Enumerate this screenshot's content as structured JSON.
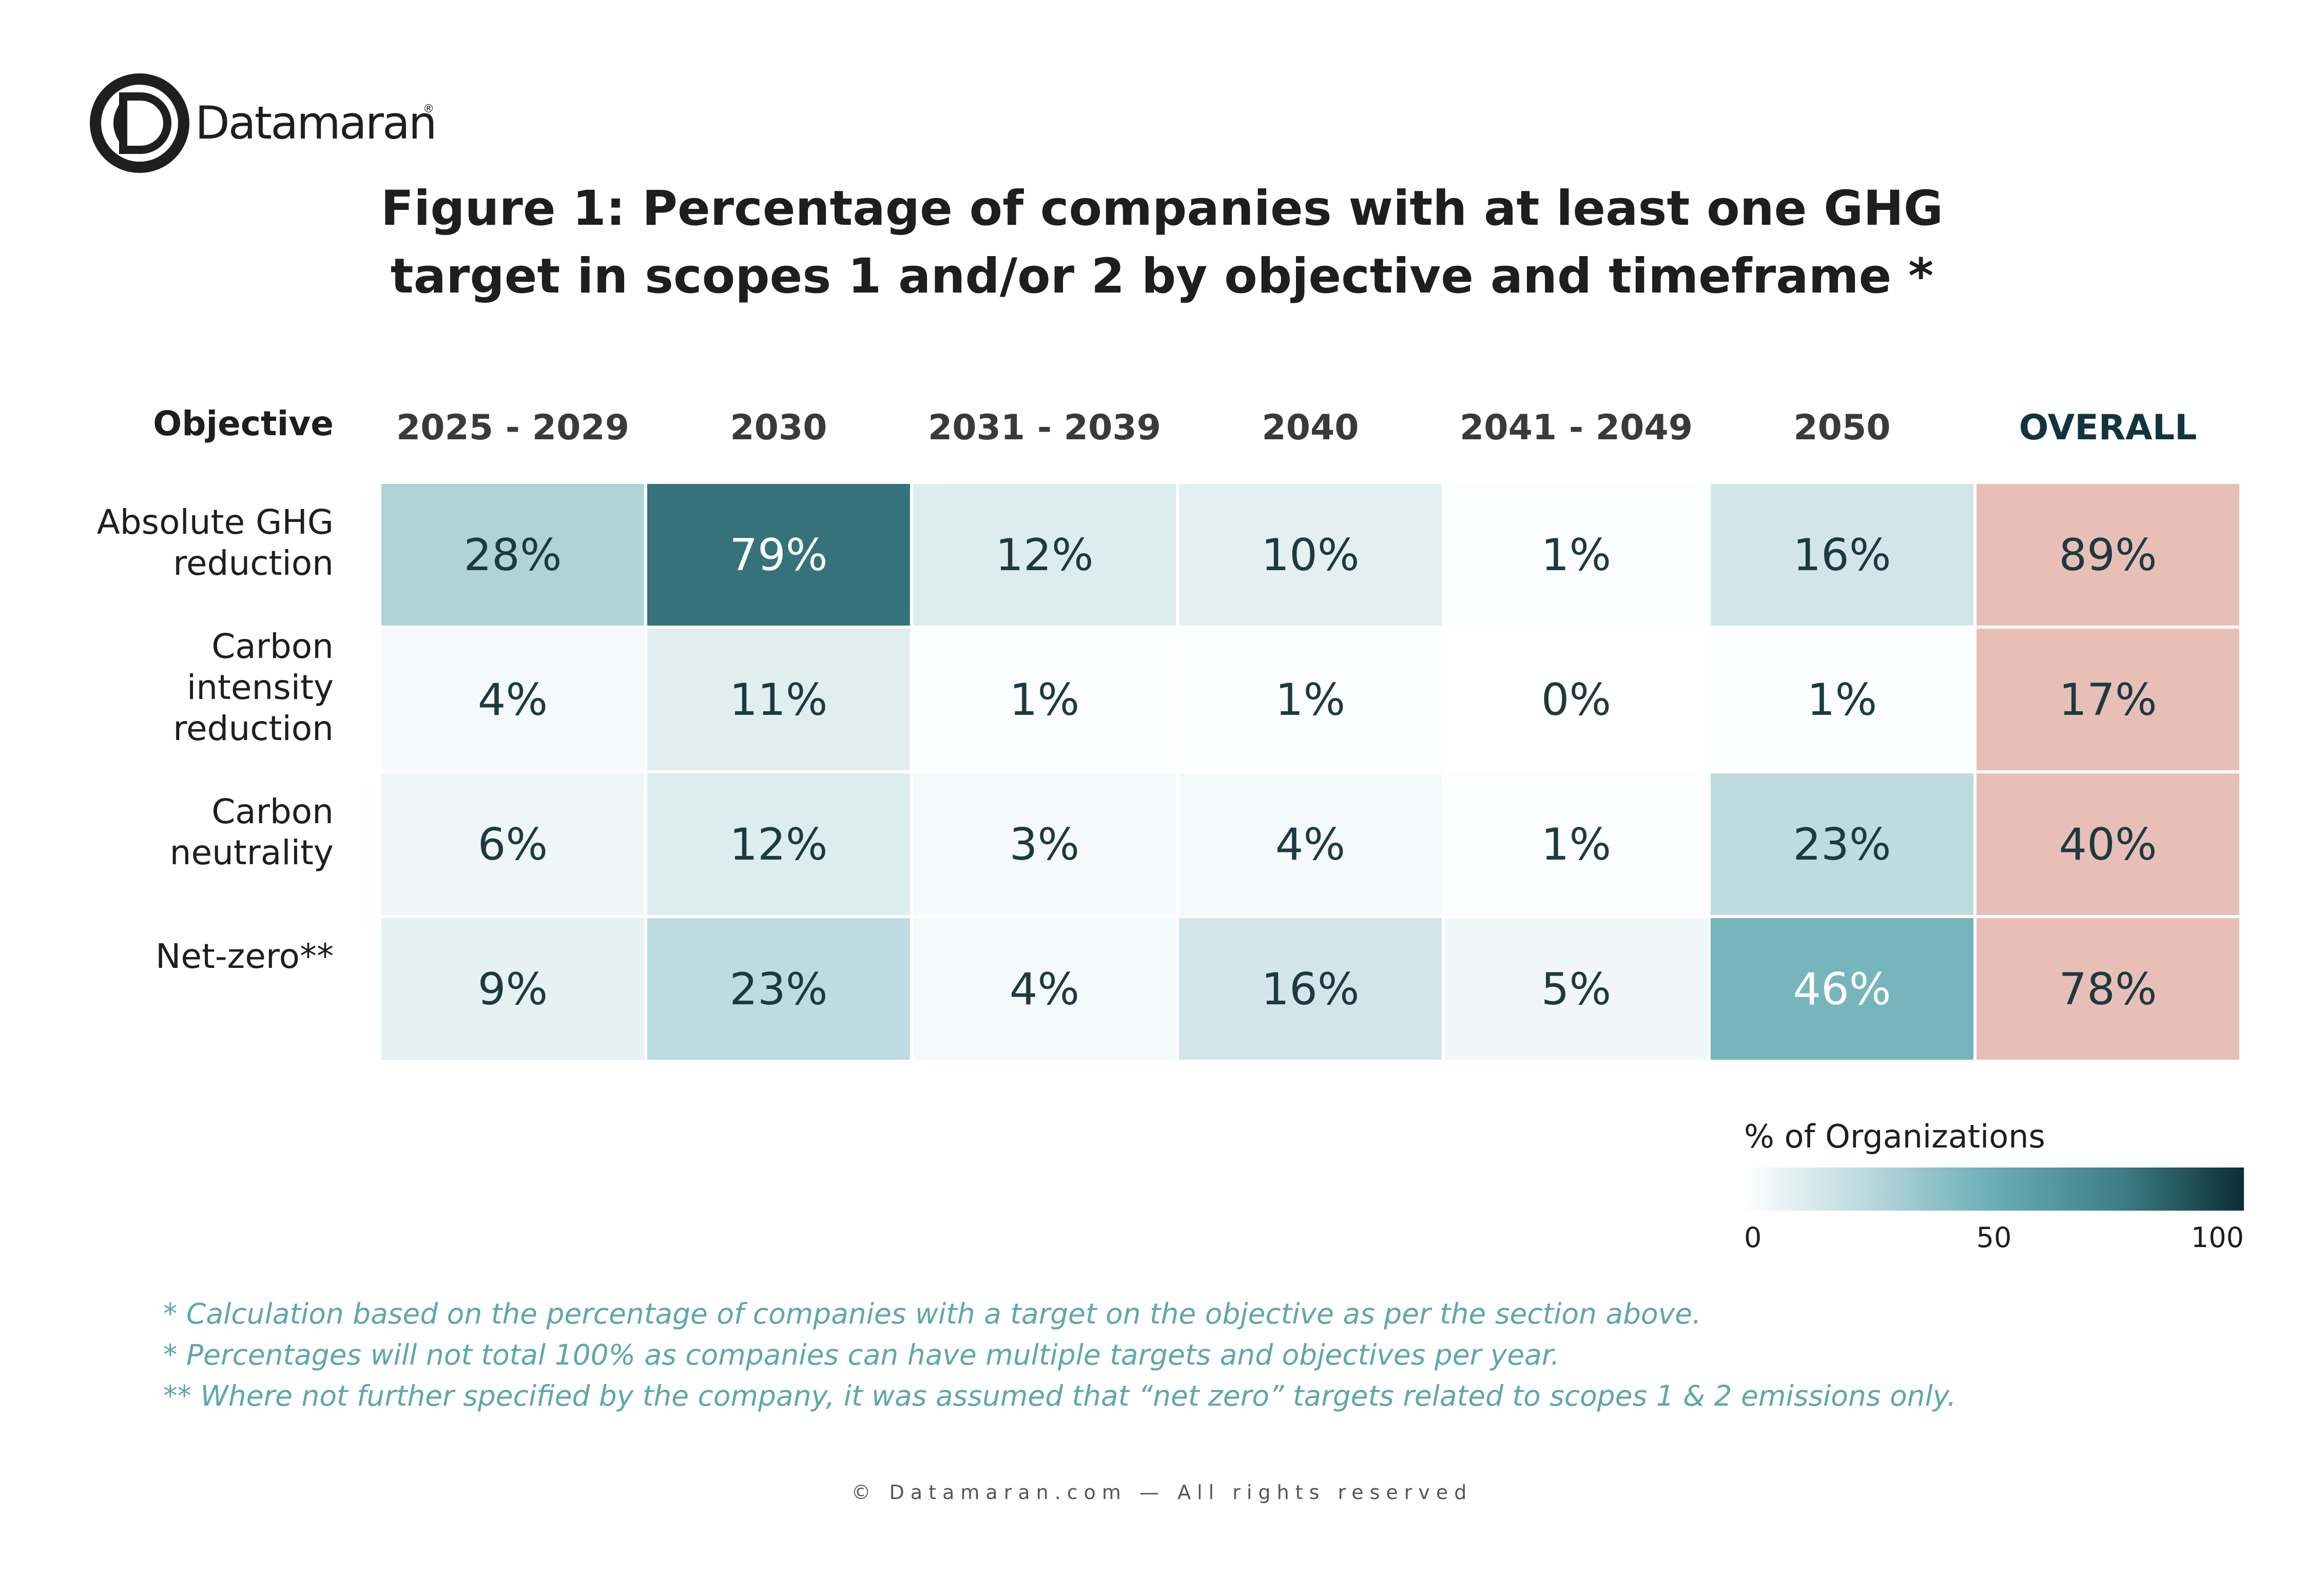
{
  "brand": {
    "name": "Datamaran",
    "reg": "®"
  },
  "title_lines": [
    "Figure 1: Percentage of companies with at least one GHG",
    "target in scopes 1 and/or 2 by objective and timeframe *"
  ],
  "chart_data": {
    "type": "heatmap",
    "title": "Figure 1: Percentage of companies with at least one GHG target in scopes 1 and/or 2 by objective and timeframe *",
    "row_header": "Objective",
    "columns": [
      "2025 - 2029",
      "2030",
      "2031 - 2039",
      "2040",
      "2041 - 2049",
      "2050",
      "OVERALL"
    ],
    "rows": [
      {
        "label": [
          "Absolute GHG",
          "reduction"
        ],
        "values": [
          28,
          79,
          12,
          10,
          1,
          16,
          89
        ]
      },
      {
        "label": [
          "Carbon",
          "intensity",
          "reduction"
        ],
        "values": [
          4,
          11,
          1,
          1,
          0,
          1,
          17
        ]
      },
      {
        "label": [
          "Carbon",
          "neutrality"
        ],
        "values": [
          6,
          12,
          3,
          4,
          1,
          23,
          40
        ]
      },
      {
        "label": [
          "Net-zero**"
        ],
        "values": [
          9,
          23,
          4,
          16,
          5,
          46,
          78
        ]
      }
    ],
    "value_suffix": "%",
    "color_scale": {
      "label": "% of Organizations",
      "min": 0,
      "max": 100,
      "ticks": [
        "0",
        "50",
        "100"
      ],
      "stops": [
        "#ffffff",
        "#b8d8dc",
        "#6aaeb6",
        "#3e7f86",
        "#0b2e35"
      ]
    },
    "overall_color": "#e8bfb7",
    "overall_header_color": "#12353d"
  },
  "footnotes": [
    "* Calculation based on the percentage of companies with a target on the objective as per the section above.",
    "* Percentages will not total 100% as companies can have multiple targets and objectives per year.",
    "** Where not further specified by the company, it was assumed that “net zero” targets related to scopes 1 & 2 emissions only."
  ],
  "copyright": "© Datamaran.com — All rights reserved"
}
